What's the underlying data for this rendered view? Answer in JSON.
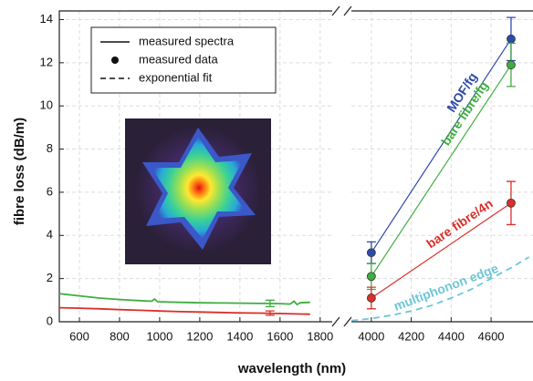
{
  "chart_data": {
    "type": "line",
    "x_label": "wavelength (nm)",
    "y_label": "fibre loss (dB/m)",
    "ylim": [
      0,
      14.4
    ],
    "yticks": [
      0,
      2,
      4,
      6,
      8,
      10,
      12,
      14
    ],
    "grid": true,
    "panels": [
      {
        "xlim": [
          500,
          1860
        ],
        "xticks": [
          600,
          800,
          1000,
          1200,
          1400,
          1600,
          1800
        ]
      },
      {
        "xlim": [
          3900,
          4810
        ],
        "xticks": [
          4000,
          4200,
          4400,
          4600
        ]
      }
    ],
    "legend": {
      "position": "upper left",
      "entries": [
        "measured spectra",
        "measured data",
        "exponential fit"
      ]
    },
    "series": [
      {
        "kind": "spectrum",
        "color": "#3fae3f",
        "x": [
          500,
          600,
          700,
          800,
          900,
          960,
          975,
          990,
          1100,
          1200,
          1300,
          1400,
          1500,
          1600,
          1650,
          1670,
          1685,
          1700,
          1750
        ],
        "values": [
          1.3,
          1.2,
          1.1,
          1.03,
          0.98,
          0.95,
          1.05,
          0.93,
          0.9,
          0.88,
          0.87,
          0.86,
          0.85,
          0.84,
          0.82,
          0.95,
          0.8,
          0.88,
          0.9
        ]
      },
      {
        "kind": "spectrum",
        "color": "#d9302a",
        "x": [
          500,
          600,
          700,
          800,
          900,
          1000,
          1100,
          1200,
          1300,
          1400,
          1500,
          1600,
          1700,
          1750
        ],
        "values": [
          0.65,
          0.63,
          0.6,
          0.56,
          0.53,
          0.5,
          0.47,
          0.45,
          0.43,
          0.41,
          0.4,
          0.38,
          0.36,
          0.35
        ]
      },
      {
        "kind": "error",
        "color": "#3fae3f",
        "x": [
          1550
        ],
        "values": [
          0.85
        ],
        "errors": [
          0.15
        ]
      },
      {
        "kind": "error",
        "color": "#d9302a",
        "x": [
          1550
        ],
        "values": [
          0.4
        ],
        "errors": [
          0.1
        ]
      },
      {
        "name": "MOF/fg",
        "kind": "points",
        "color": "#2e4aa8",
        "x": [
          4000,
          4700
        ],
        "values": [
          3.2,
          13.1
        ],
        "errors": [
          0.5,
          1.0
        ]
      },
      {
        "name": "bare fibre/fg",
        "kind": "points",
        "color": "#3fae3f",
        "x": [
          4000,
          4700
        ],
        "values": [
          2.1,
          11.9
        ],
        "errors": [
          0.6,
          1.0
        ]
      },
      {
        "name": "bare fibre/4n",
        "kind": "points",
        "color": "#d9302a",
        "x": [
          4000,
          4700
        ],
        "values": [
          1.1,
          5.5
        ],
        "errors": [
          0.5,
          1.0
        ]
      },
      {
        "name": "multiphonon edge",
        "kind": "fit",
        "color": "#6ec6d6",
        "x": [
          3900,
          4000,
          4100,
          4200,
          4300,
          4400,
          4500,
          4600,
          4700,
          4790
        ],
        "values": [
          0.05,
          0.15,
          0.3,
          0.5,
          0.75,
          1.1,
          1.5,
          2.0,
          2.5,
          3.0
        ]
      }
    ]
  }
}
